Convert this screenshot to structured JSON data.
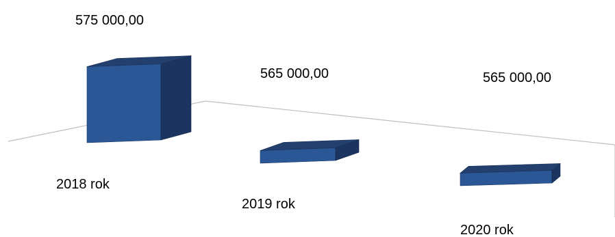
{
  "chart_data": {
    "type": "bar",
    "style": "3d",
    "categories": [
      "2018 rok",
      "2019 rok",
      "2020 rok"
    ],
    "values": [
      575000,
      565000,
      565000
    ],
    "value_labels": [
      "575 000,00",
      "565 000,00",
      "565 000,00"
    ],
    "title": "",
    "xlabel": "",
    "ylabel": "",
    "ylim": [
      563000,
      577000
    ],
    "grid": false,
    "legend": "none",
    "colors": {
      "front": "#2b5797",
      "side": "#1b3460",
      "top": "#223f6e",
      "floor_line": "#bfbfbf"
    }
  }
}
